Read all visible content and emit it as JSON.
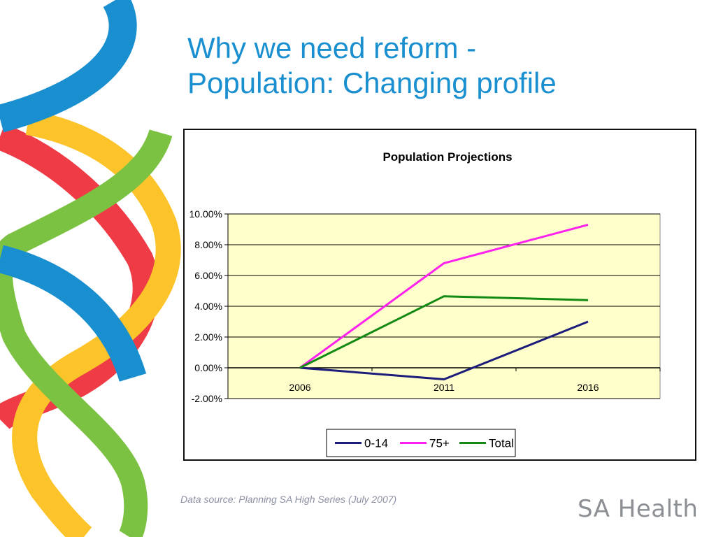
{
  "slide": {
    "title_line1": "Why we need reform -",
    "title_line2": "Population: Changing profile",
    "source": "Data source: Planning SA High Series (July 2007)",
    "brand": "SA Health"
  },
  "colors": {
    "title": "#1a8fd0",
    "plot_background": "#ffffcc",
    "ribbon_blue": "#1a8fd0",
    "ribbon_red": "#ee3b45",
    "ribbon_yellow": "#fcc42a",
    "ribbon_green": "#7cc242"
  },
  "chart_data": {
    "type": "line",
    "title": "Population Projections",
    "xlabel": "",
    "ylabel": "",
    "categories": [
      "2006",
      "2011",
      "2016"
    ],
    "yticks": [
      "-2.00%",
      "0.00%",
      "2.00%",
      "4.00%",
      "6.00%",
      "8.00%",
      "10.00%"
    ],
    "ylim": [
      -2,
      10
    ],
    "grid": true,
    "legend_position": "bottom",
    "series": [
      {
        "name": "0-14",
        "values": [
          0,
          -0.75,
          3.0
        ],
        "color": "#1c1c7a"
      },
      {
        "name": "75+",
        "values": [
          0,
          6.8,
          9.3
        ],
        "color": "#ff22ee"
      },
      {
        "name": "Total",
        "values": [
          0,
          4.65,
          4.4
        ],
        "color": "#138a13"
      }
    ]
  }
}
